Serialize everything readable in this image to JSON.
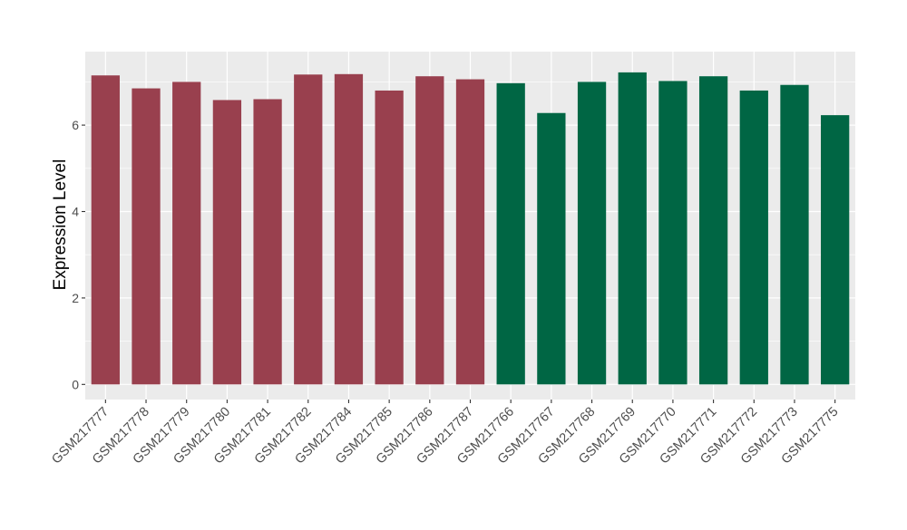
{
  "chart_data": {
    "type": "bar",
    "title": "",
    "xlabel": "",
    "ylabel": "Expression Level",
    "ylim": [
      -0.35,
      7.7
    ],
    "yticks": [
      0,
      2,
      4,
      6
    ],
    "grid": true,
    "legend": "none",
    "categories": [
      "GSM217777",
      "GSM217778",
      "GSM217779",
      "GSM217780",
      "GSM217781",
      "GSM217782",
      "GSM217784",
      "GSM217785",
      "GSM217786",
      "GSM217787",
      "GSM217766",
      "GSM217767",
      "GSM217768",
      "GSM217769",
      "GSM217770",
      "GSM217771",
      "GSM217772",
      "GSM217773",
      "GSM217775"
    ],
    "values": [
      7.15,
      6.85,
      7.0,
      6.58,
      6.6,
      7.17,
      7.18,
      6.8,
      7.13,
      7.06,
      6.97,
      6.28,
      7.0,
      7.22,
      7.02,
      7.13,
      6.8,
      6.93,
      6.23
    ],
    "groups": [
      "A",
      "A",
      "A",
      "A",
      "A",
      "A",
      "A",
      "A",
      "A",
      "A",
      "B",
      "B",
      "B",
      "B",
      "B",
      "B",
      "B",
      "B",
      "B"
    ],
    "group_colors": {
      "A": "#99404e",
      "B": "#006644"
    },
    "panel_color": "#ebebeb",
    "grid_color": "#ffffff"
  }
}
